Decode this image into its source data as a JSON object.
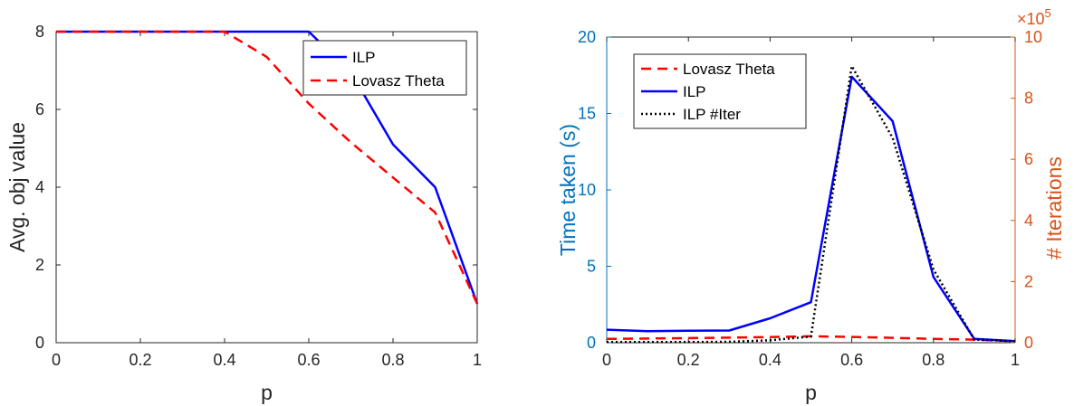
{
  "chart_data": [
    {
      "type": "line",
      "xlabel": "p",
      "ylabel": "Avg. obj value",
      "xlim": [
        0,
        1
      ],
      "ylim": [
        0,
        8
      ],
      "xticks": [
        "0",
        "0.2",
        "0.4",
        "0.6",
        "0.8",
        "1"
      ],
      "yticks": [
        "0",
        "2",
        "4",
        "6",
        "8"
      ],
      "legend_position": "top-right",
      "grid": false,
      "series": [
        {
          "name": "ILP",
          "color": "#0000ff",
          "style": "solid",
          "x": [
            0,
            0.1,
            0.2,
            0.3,
            0.4,
            0.5,
            0.6,
            0.7,
            0.8,
            0.9,
            1.0
          ],
          "y": [
            8,
            8,
            8,
            8,
            8,
            8,
            8,
            6.95,
            5.1,
            4.0,
            1.0
          ]
        },
        {
          "name": "Lovasz Theta",
          "color": "#ff0000",
          "style": "dashed",
          "x": [
            0,
            0.1,
            0.2,
            0.3,
            0.4,
            0.5,
            0.6,
            0.7,
            0.8,
            0.9,
            1.0
          ],
          "y": [
            8,
            8,
            8,
            8,
            8,
            7.35,
            6.15,
            5.15,
            4.25,
            3.35,
            1.0
          ]
        }
      ]
    },
    {
      "type": "line",
      "xlabel": "p",
      "ylabel": "Time taken (s)",
      "y2label": "# Iterations",
      "y2_exponent": "×10",
      "y2_exponent_power": "5",
      "xlim": [
        0,
        1
      ],
      "ylim": [
        0,
        20
      ],
      "y2lim": [
        0,
        10
      ],
      "xticks": [
        "0",
        "0.2",
        "0.4",
        "0.6",
        "0.8",
        "1"
      ],
      "yticks": [
        "0",
        "5",
        "10",
        "15",
        "20"
      ],
      "y2ticks": [
        "0",
        "2",
        "4",
        "6",
        "8",
        "10"
      ],
      "left_axis_color": "#0072bd",
      "right_axis_color": "#d95319",
      "legend_position": "top-left",
      "grid": false,
      "series": [
        {
          "name": "Lovasz Theta",
          "axis": "left",
          "color": "#ff0000",
          "style": "dashed",
          "x": [
            0,
            0.1,
            0.2,
            0.3,
            0.4,
            0.5,
            0.6,
            0.7,
            0.8,
            0.9,
            1.0
          ],
          "y": [
            0.25,
            0.27,
            0.3,
            0.33,
            0.37,
            0.42,
            0.38,
            0.32,
            0.25,
            0.2,
            0.1
          ]
        },
        {
          "name": "ILP",
          "axis": "left",
          "color": "#0000ff",
          "style": "solid",
          "x": [
            0,
            0.1,
            0.2,
            0.3,
            0.4,
            0.5,
            0.6,
            0.7,
            0.8,
            0.9,
            1.0
          ],
          "y": [
            0.85,
            0.75,
            0.78,
            0.8,
            1.6,
            2.65,
            17.4,
            14.5,
            4.3,
            0.25,
            0.1
          ]
        },
        {
          "name": "ILP #Iter",
          "axis": "right",
          "color": "#000000",
          "style": "dotted",
          "x": [
            0,
            0.1,
            0.2,
            0.3,
            0.4,
            0.5,
            0.6,
            0.7,
            0.8,
            0.9,
            1.0
          ],
          "y": [
            0.02,
            0.02,
            0.02,
            0.03,
            0.08,
            0.2,
            9.05,
            6.7,
            2.4,
            0.1,
            0.05
          ]
        }
      ]
    }
  ]
}
